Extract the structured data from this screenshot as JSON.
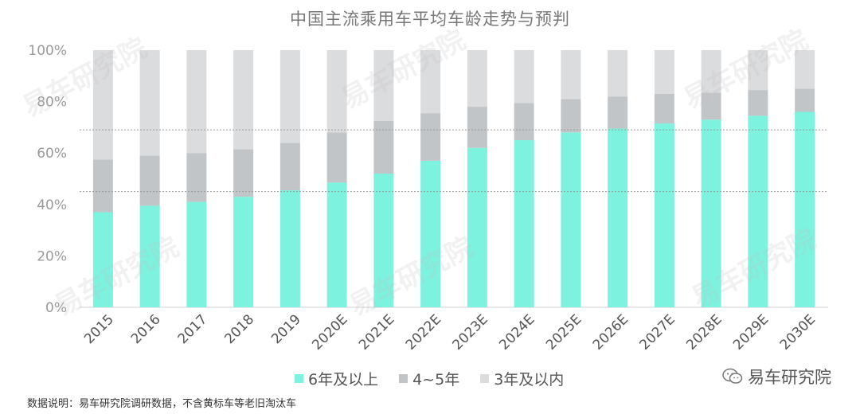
{
  "chart_data": {
    "type": "bar",
    "stacked": true,
    "title": "中国主流乘用车平均车龄走势与预判",
    "categories": [
      "2015",
      "2016",
      "2017",
      "2018",
      "2019",
      "2020E",
      "2021E",
      "2022E",
      "2023E",
      "2024E",
      "2025E",
      "2026E",
      "2027E",
      "2028E",
      "2029E",
      "2030E"
    ],
    "series": [
      {
        "name": "6年及以上",
        "color": "#7df2df",
        "values": [
          37,
          39.5,
          41,
          43,
          45.5,
          48.5,
          52,
          57,
          62,
          65,
          68,
          69.5,
          71.5,
          73,
          74.5,
          76
        ]
      },
      {
        "name": "4~5年",
        "color": "#c2c5c8",
        "values": [
          20.5,
          19.5,
          19,
          18.5,
          18.5,
          19.5,
          20.5,
          18.5,
          16,
          14.5,
          13,
          12.5,
          11.5,
          10.5,
          10,
          9
        ]
      },
      {
        "name": "3年及以内",
        "color": "#dbdcde",
        "values": [
          42.5,
          41,
          40,
          38.5,
          36,
          32,
          27.5,
          24.5,
          22,
          20.5,
          19,
          18,
          17,
          16.5,
          15.5,
          15
        ]
      }
    ],
    "ylim": [
      0,
      100
    ],
    "yticks": [
      "0%",
      "20%",
      "40%",
      "60%",
      "80%",
      "100%"
    ],
    "ytick_values": [
      0,
      20,
      40,
      60,
      80,
      100
    ],
    "reference_lines": [
      45,
      69
    ],
    "legend_position": "bottom"
  },
  "brand": "易车研究院",
  "watermark": "易车研究院",
  "source_note": "数据说明：易车研究院调研数据，不含黄标车等老旧淘汰车"
}
